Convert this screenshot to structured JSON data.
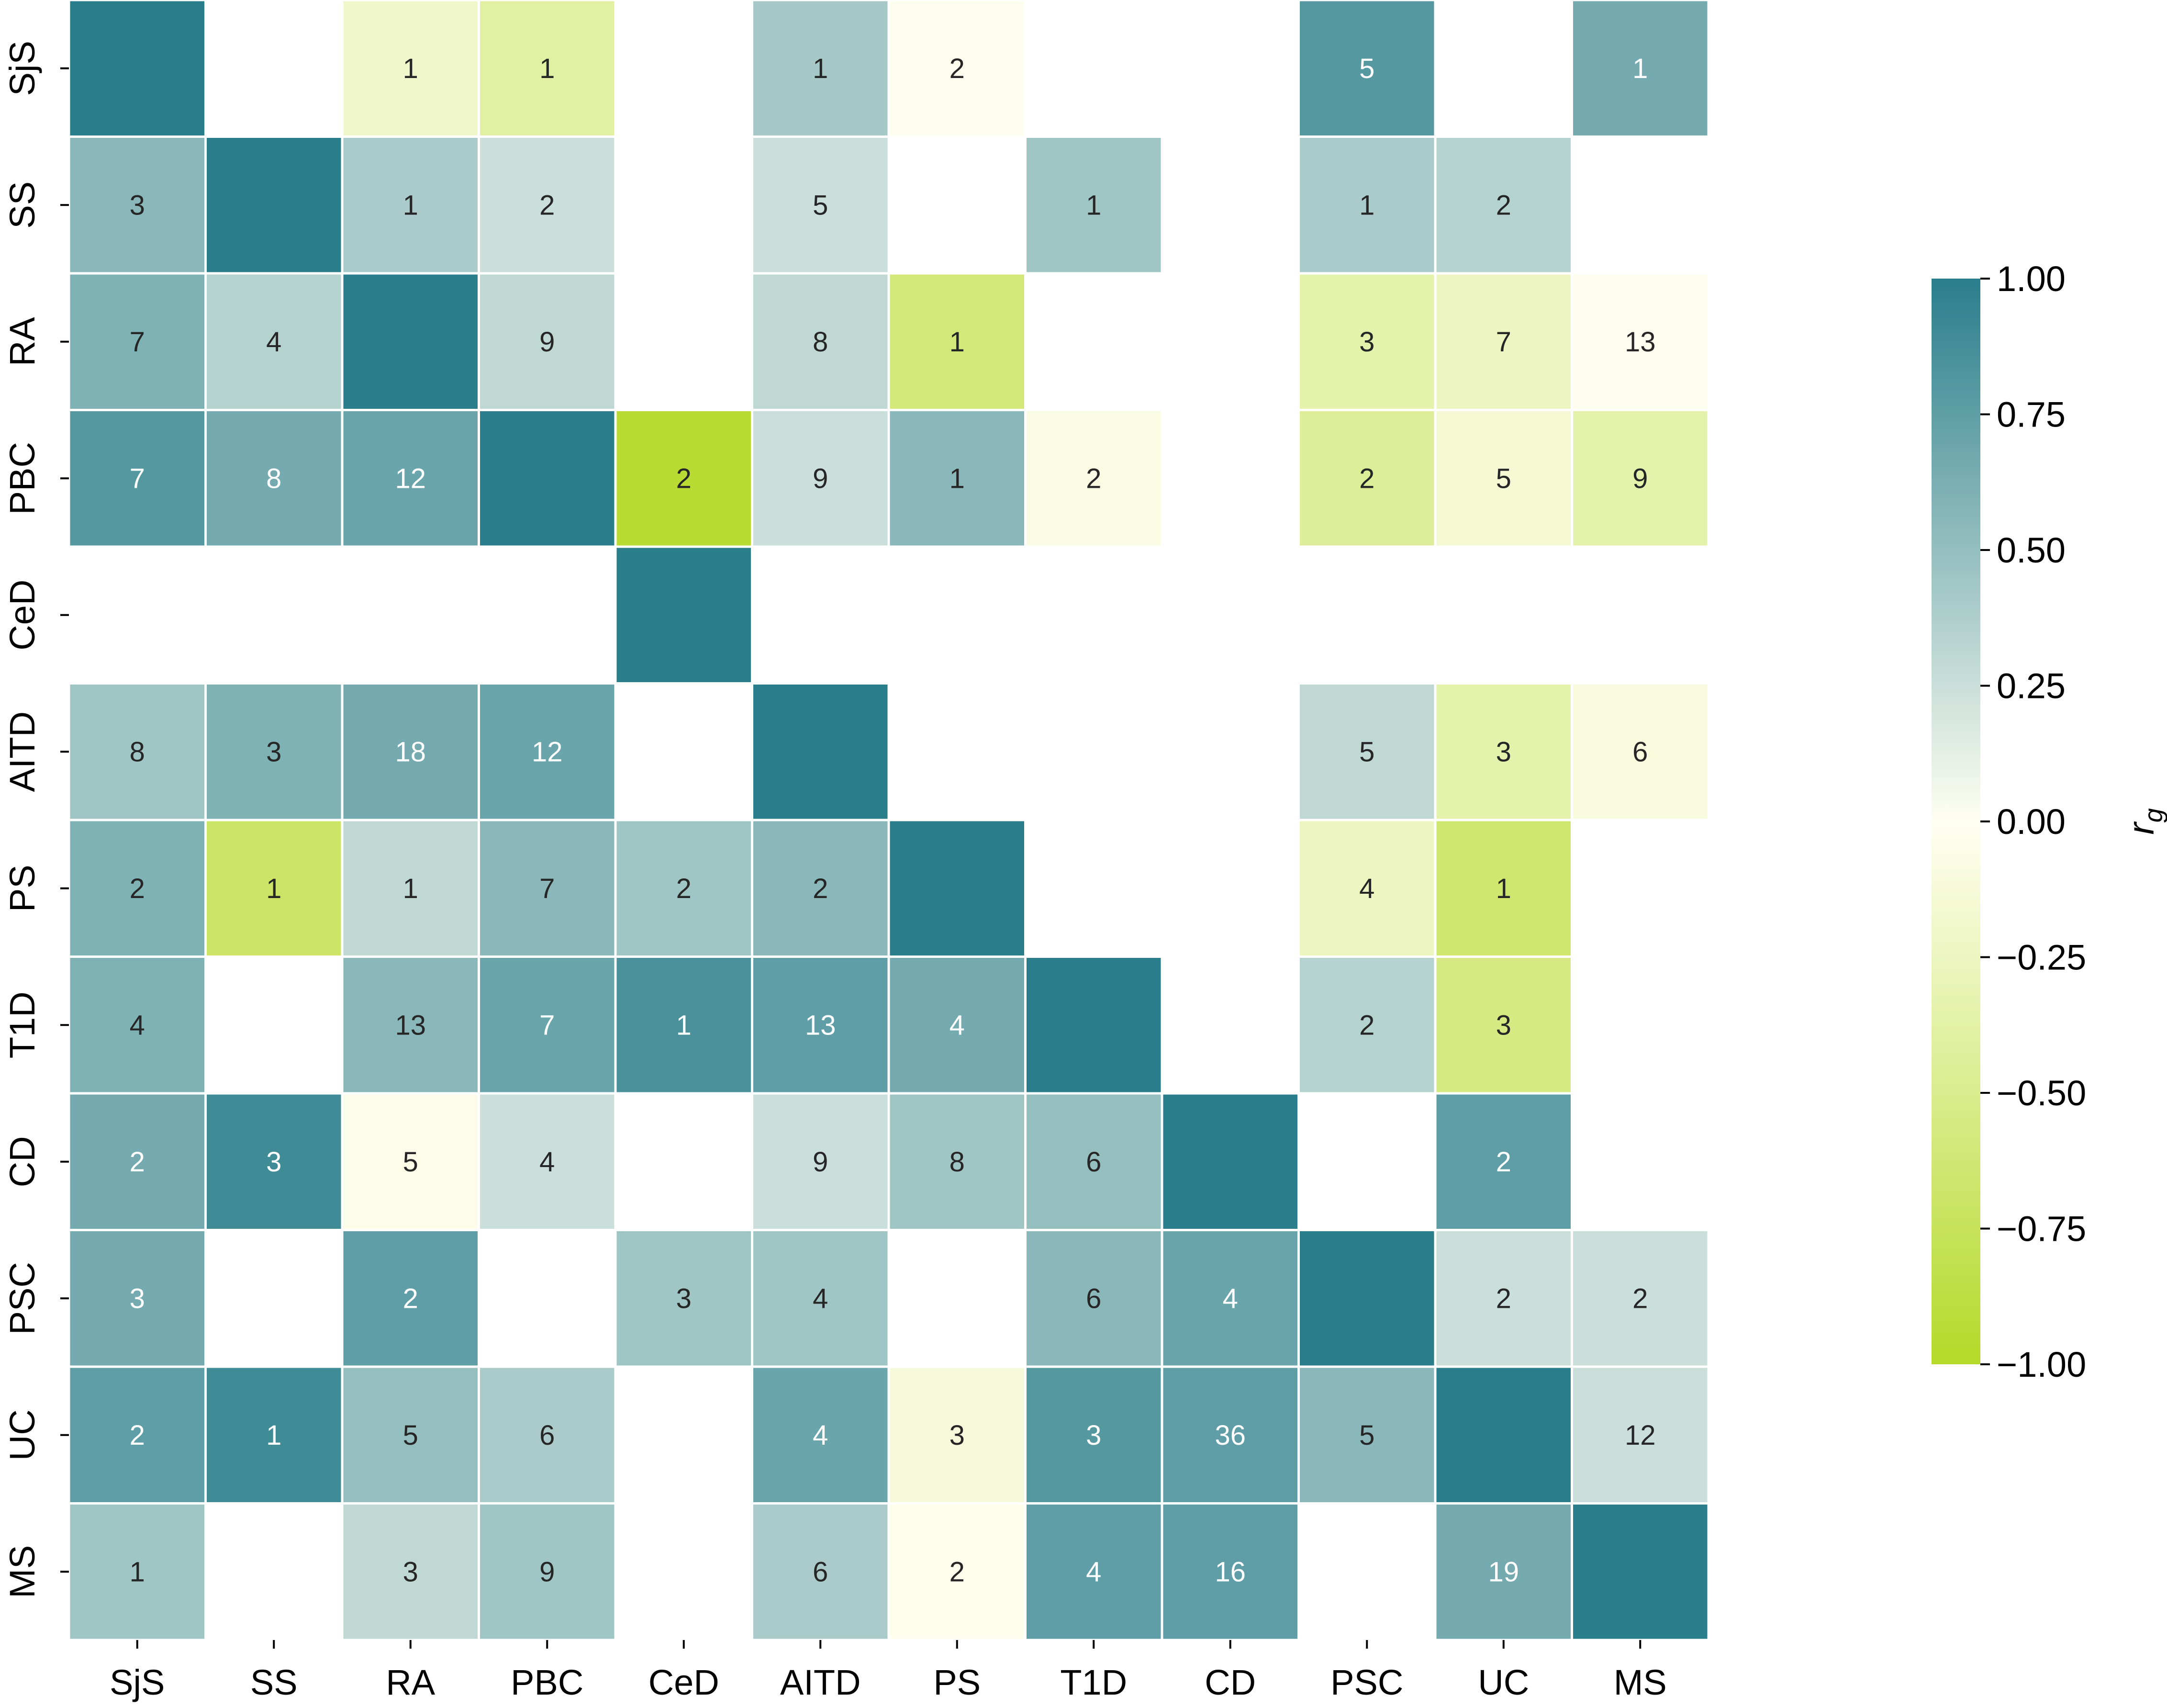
{
  "chart_data": {
    "type": "heatmap",
    "title": "",
    "xlabel": "",
    "ylabel": "",
    "x_categories": [
      "SjS",
      "SS",
      "RA",
      "PBC",
      "CeD",
      "AITD",
      "PS",
      "T1D",
      "CD",
      "PSC",
      "UC",
      "MS"
    ],
    "y_categories": [
      "SjS",
      "SS",
      "RA",
      "PBC",
      "CeD",
      "AITD",
      "PS",
      "T1D",
      "CD",
      "PSC",
      "UC",
      "MS"
    ],
    "values": [
      [
        1.0,
        null,
        -0.2,
        -0.4,
        null,
        0.42,
        -0.02,
        null,
        null,
        0.8,
        null,
        0.65
      ],
      [
        0.55,
        1.0,
        0.4,
        0.25,
        null,
        0.25,
        null,
        0.45,
        null,
        0.4,
        0.35,
        null
      ],
      [
        0.6,
        0.35,
        1.0,
        0.3,
        null,
        0.3,
        -0.6,
        null,
        null,
        -0.35,
        -0.25,
        -0.02
      ],
      [
        0.8,
        0.65,
        0.7,
        1.0,
        -0.95,
        0.25,
        0.55,
        -0.08,
        null,
        -0.45,
        -0.15,
        -0.35
      ],
      [
        null,
        null,
        null,
        null,
        1.0,
        null,
        null,
        null,
        null,
        null,
        null,
        null
      ],
      [
        0.45,
        0.6,
        0.65,
        0.7,
        null,
        1.0,
        null,
        null,
        null,
        0.3,
        -0.35,
        -0.1
      ],
      [
        0.6,
        -0.7,
        0.3,
        0.55,
        0.45,
        0.55,
        1.0,
        null,
        null,
        -0.25,
        -0.65,
        null
      ],
      [
        0.6,
        null,
        0.55,
        0.7,
        0.85,
        0.75,
        0.65,
        1.0,
        null,
        0.35,
        -0.55,
        null
      ],
      [
        0.65,
        0.9,
        -0.05,
        0.25,
        null,
        0.25,
        0.45,
        0.5,
        1.0,
        null,
        0.75,
        null
      ],
      [
        0.65,
        null,
        0.75,
        null,
        0.45,
        0.45,
        null,
        0.55,
        0.7,
        1.0,
        0.25,
        0.25
      ],
      [
        0.75,
        0.9,
        0.5,
        0.4,
        null,
        0.7,
        -0.12,
        0.8,
        0.75,
        0.55,
        1.0,
        0.25
      ],
      [
        0.45,
        null,
        0.3,
        0.45,
        null,
        0.4,
        -0.03,
        0.75,
        0.75,
        null,
        0.65,
        1.0
      ]
    ],
    "annotations": [
      [
        "",
        "",
        "1",
        "1",
        "",
        "1",
        "2",
        "",
        "",
        "5",
        "",
        "1"
      ],
      [
        "3",
        "",
        "1",
        "2",
        "",
        "5",
        "",
        "1",
        "",
        "1",
        "2",
        ""
      ],
      [
        "7",
        "4",
        "",
        "9",
        "",
        "8",
        "1",
        "",
        "",
        "3",
        "7",
        "13"
      ],
      [
        "7",
        "8",
        "12",
        "",
        "2",
        "9",
        "1",
        "2",
        "",
        "2",
        "5",
        "9"
      ],
      [
        "",
        "",
        "",
        "",
        "",
        "",
        "",
        "",
        "",
        "",
        "",
        ""
      ],
      [
        "8",
        "3",
        "18",
        "12",
        "",
        "",
        "",
        "",
        "",
        "5",
        "3",
        "6"
      ],
      [
        "2",
        "1",
        "1",
        "7",
        "2",
        "2",
        "",
        "",
        "",
        "4",
        "1",
        ""
      ],
      [
        "4",
        "",
        "13",
        "7",
        "1",
        "13",
        "4",
        "",
        "",
        "2",
        "3",
        ""
      ],
      [
        "2",
        "3",
        "5",
        "4",
        "",
        "9",
        "8",
        "6",
        "",
        "",
        "2",
        ""
      ],
      [
        "3",
        "",
        "2",
        "",
        "3",
        "4",
        "",
        "6",
        "4",
        "",
        "2",
        "2"
      ],
      [
        "2",
        "1",
        "5",
        "6",
        "",
        "4",
        "3",
        "3",
        "36",
        "5",
        "",
        "12"
      ],
      [
        "1",
        "",
        "3",
        "9",
        "",
        "6",
        "2",
        "4",
        "16",
        "",
        "19",
        ""
      ]
    ],
    "colorbar": {
      "label": "r_g",
      "range": [
        -1.0,
        1.0
      ],
      "ticks": [
        "1.00",
        "0.75",
        "0.50",
        "0.25",
        "0.00",
        "−0.25",
        "−0.50",
        "−0.75",
        "−1.00"
      ],
      "tick_values": [
        1.0,
        0.75,
        0.5,
        0.25,
        0.0,
        -0.25,
        -0.5,
        -0.75,
        -1.0
      ],
      "colors": {
        "negative": "#b5d929",
        "zero": "#fffff2",
        "positive": "#2a7e8c"
      }
    },
    "grid": true,
    "legend": "colorbar right"
  }
}
